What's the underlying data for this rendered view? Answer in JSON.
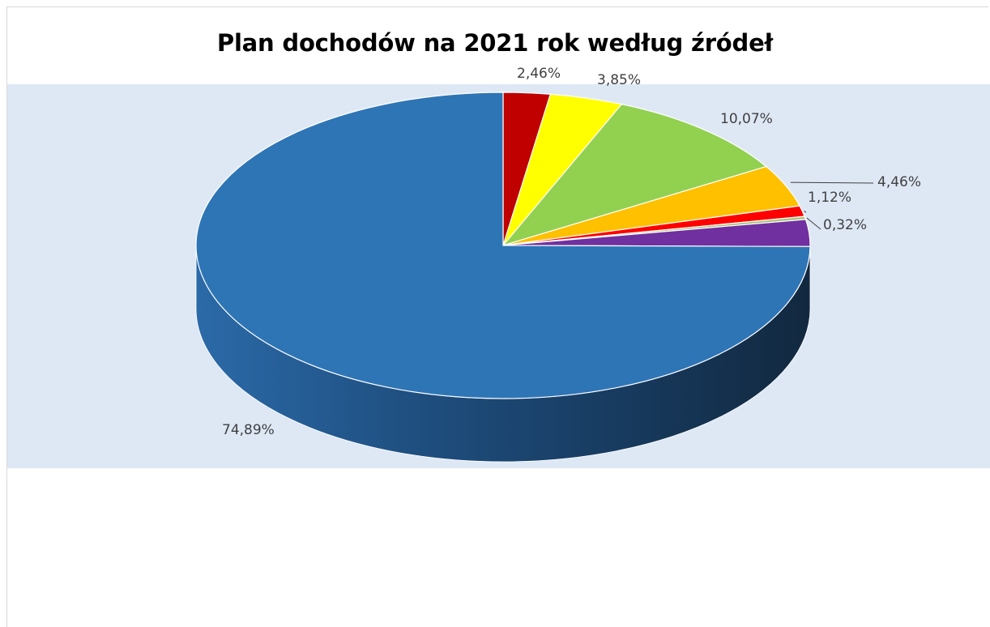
{
  "chart_data": {
    "type": "pie",
    "title": "Plan dochodów na 2021 rok według źródeł",
    "style": "3d",
    "slices": [
      {
        "value": 2.46,
        "label": "2,46%",
        "color": "#c00000"
      },
      {
        "value": 3.85,
        "label": "3,85%",
        "color": "#ffff00"
      },
      {
        "value": 10.07,
        "label": "10,07%",
        "color": "#92d050"
      },
      {
        "value": 4.46,
        "label": "4,46%",
        "color": "#ffc000"
      },
      {
        "value": 1.12,
        "label": "1,12%",
        "color": "#ff0000"
      },
      {
        "value": 0.32,
        "label": "0,32%",
        "color": "#a9c27a"
      },
      {
        "value": 2.83,
        "label": "",
        "color": "#7030a0"
      },
      {
        "value": 74.89,
        "label": "74,89%",
        "color": "#2e75b6"
      }
    ],
    "colors": {
      "plot_background": "#dee8f5",
      "label_text": "#404040"
    }
  }
}
